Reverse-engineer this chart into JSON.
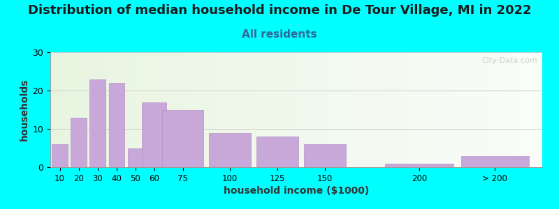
{
  "title": "Distribution of median household income in De Tour Village, MI in 2022",
  "subtitle": "All residents",
  "xlabel": "household income ($1000)",
  "ylabel": "households",
  "background_outer": "#00FFFF",
  "bar_color": "#C8A8D8",
  "bar_edge_color": "#B890C8",
  "categories": [
    "10",
    "20",
    "30",
    "40",
    "50",
    "60",
    "75",
    "100",
    "125",
    "150",
    "200",
    "> 200"
  ],
  "x_positions": [
    10,
    20,
    30,
    40,
    50,
    60,
    75,
    100,
    125,
    150,
    200,
    240
  ],
  "bar_widths": [
    9,
    9,
    9,
    9,
    9,
    14,
    24,
    24,
    24,
    24,
    39,
    39
  ],
  "values": [
    6,
    13,
    23,
    22,
    5,
    17,
    15,
    9,
    8,
    6,
    1,
    3
  ],
  "ylim": [
    0,
    30
  ],
  "xlim": [
    5,
    265
  ],
  "yticks": [
    0,
    10,
    20,
    30
  ],
  "xtick_positions": [
    10,
    20,
    30,
    40,
    50,
    60,
    75,
    100,
    125,
    150,
    200,
    240
  ],
  "watermark": "City-Data.com",
  "title_fontsize": 13,
  "subtitle_fontsize": 11,
  "axis_label_fontsize": 10,
  "title_color": "#1a1a1a",
  "subtitle_color": "#336699"
}
